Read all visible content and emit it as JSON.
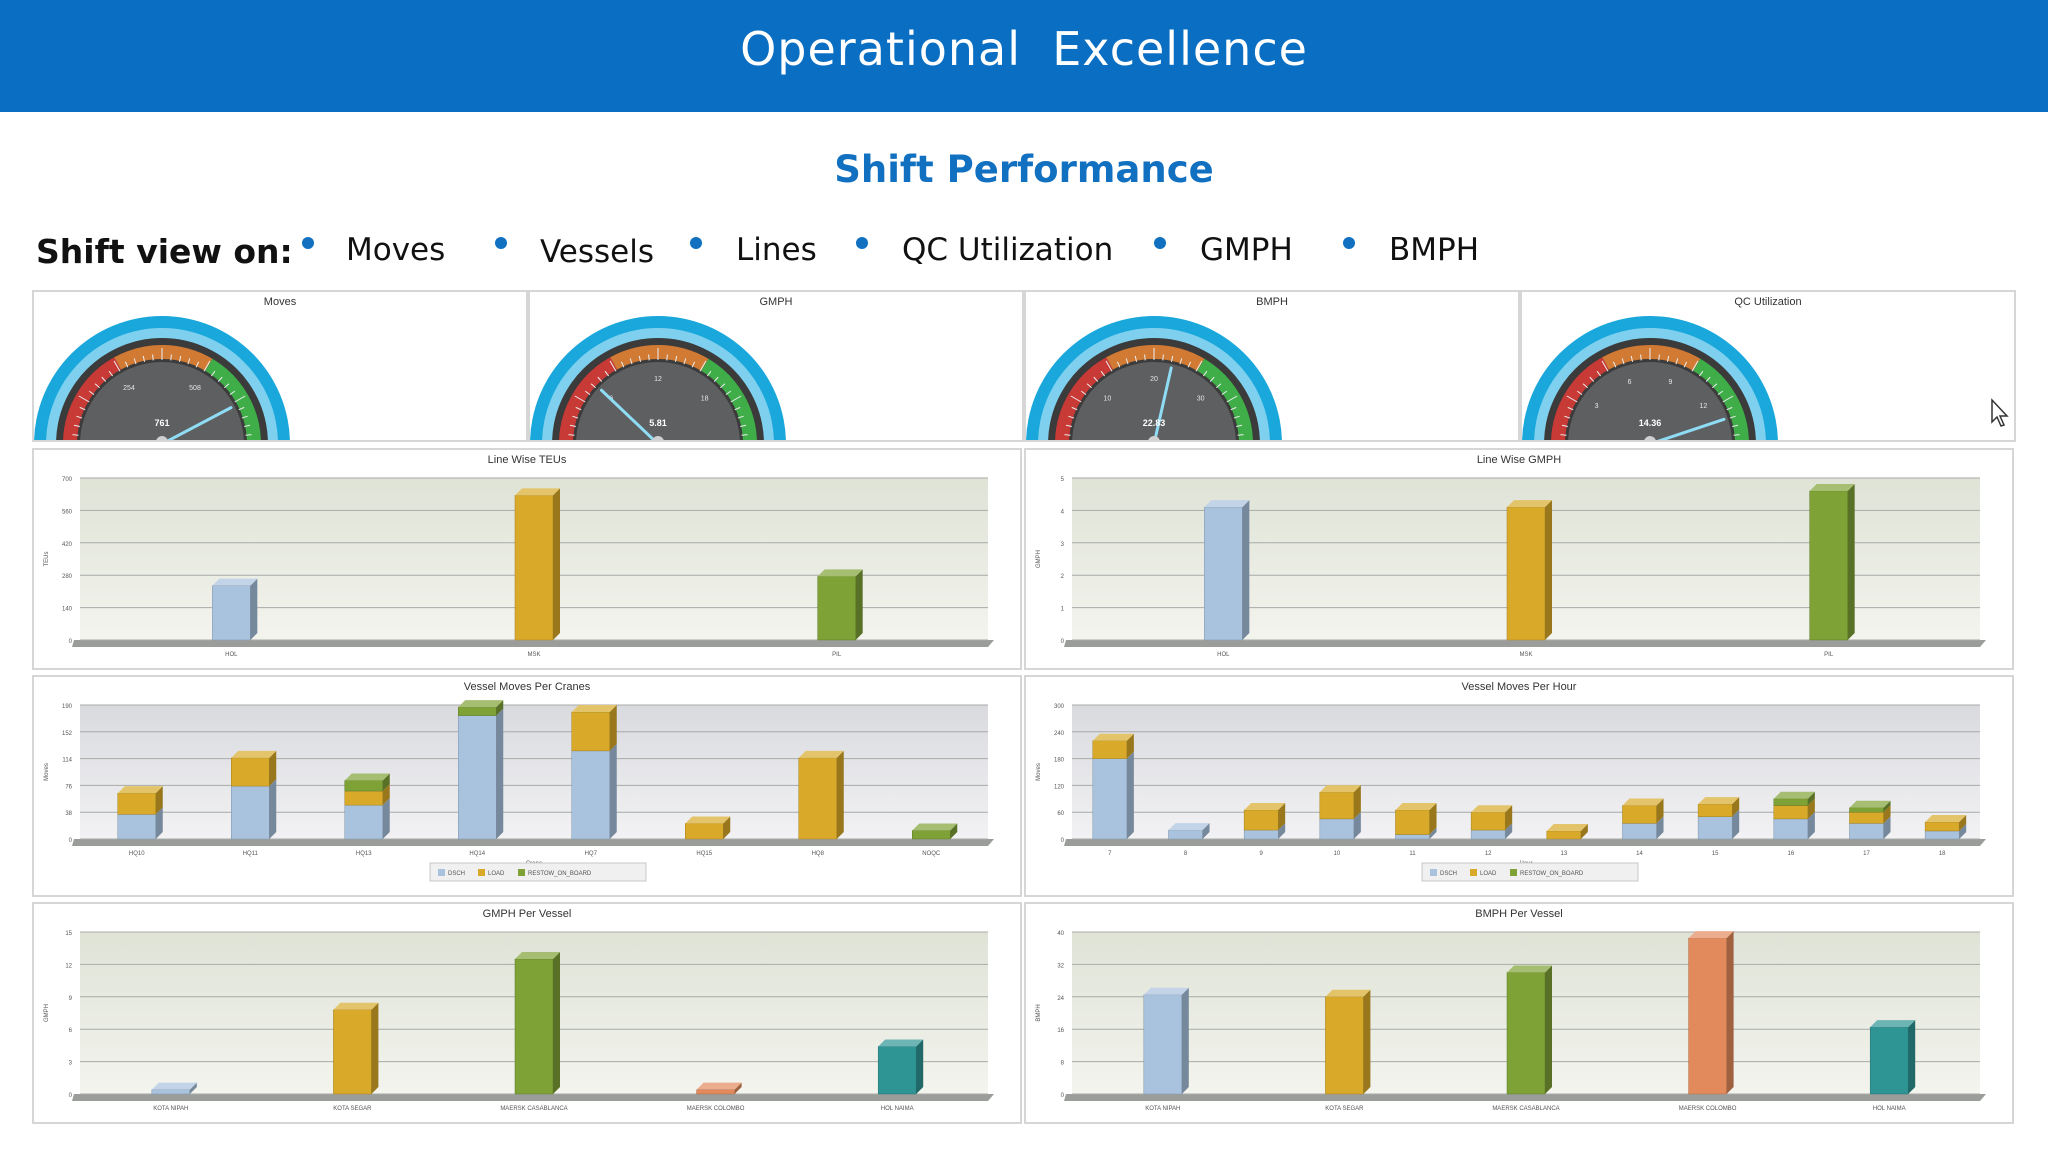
{
  "banner": {
    "title": "Operational  Excellence"
  },
  "subtitle": "Shift Performance",
  "shift_view": {
    "label": "Shift view on:",
    "options": [
      "Moves",
      "Vessels",
      "Lines",
      "QC Utilization",
      "GMPH",
      "BMPH"
    ]
  },
  "colors": {
    "banner": "#0a6fc2",
    "accent": "#1170c0",
    "dsch": "#a9c2de",
    "load": "#d9aa2a",
    "restow": "#7fa236",
    "orange": "#e38a5c",
    "teal": "#2f9494"
  },
  "gauges": [
    {
      "title": "Moves",
      "value": 761,
      "display": "761",
      "max": 900,
      "ticks": [
        "254",
        "508"
      ]
    },
    {
      "title": "GMPH",
      "value": 5.81,
      "display": "5.81",
      "max": 24,
      "ticks": [
        "6",
        "12",
        "18"
      ]
    },
    {
      "title": "BMPH",
      "value": 22.83,
      "display": "22.83",
      "max": 40,
      "ticks": [
        "10",
        "20",
        "30"
      ]
    },
    {
      "title": "QC Utilization",
      "value": 14.36,
      "display": "14.36",
      "max": 16,
      "ticks": [
        "3",
        "6",
        "9",
        "12"
      ]
    }
  ],
  "chart_data": [
    {
      "type": "bar",
      "title": "Line Wise TEUs",
      "ylabel": "TEUs",
      "xlabel": "",
      "ylim": [
        0,
        700
      ],
      "yticks": [
        0,
        140,
        280,
        420,
        560,
        700
      ],
      "categories": [
        "HOL",
        "MSK",
        "PIL"
      ],
      "values": [
        235,
        625,
        275
      ]
    },
    {
      "type": "bar",
      "title": "Line Wise GMPH",
      "ylabel": "GMPH",
      "xlabel": "",
      "ylim": [
        0,
        5
      ],
      "yticks": [
        0,
        1,
        2,
        3,
        4,
        5
      ],
      "categories": [
        "HOL",
        "MSK",
        "PIL"
      ],
      "values": [
        4.1,
        4.1,
        4.6
      ]
    },
    {
      "type": "bar",
      "stacked": true,
      "title": "Vessel Moves Per Cranes",
      "ylabel": "Moves",
      "xlabel": "Crane",
      "ylim": [
        0,
        190
      ],
      "yticks": [
        0,
        38,
        76,
        114,
        152,
        190
      ],
      "categories": [
        "HQ10",
        "HQ11",
        "HQ13",
        "HQ14",
        "HQ7",
        "HQ15",
        "HQ8",
        "NOQC"
      ],
      "series": [
        {
          "name": "DSCH",
          "values": [
            35,
            75,
            48,
            175,
            125,
            0,
            0,
            0
          ]
        },
        {
          "name": "LOAD",
          "values": [
            30,
            40,
            20,
            0,
            55,
            22,
            115,
            0
          ]
        },
        {
          "name": "RESTOW_ON_BOARD",
          "values": [
            0,
            0,
            15,
            12,
            0,
            0,
            0,
            12
          ]
        }
      ],
      "legend": "bottom"
    },
    {
      "type": "bar",
      "stacked": true,
      "title": "Vessel Moves Per Hour",
      "ylabel": "Moves",
      "xlabel": "Hour",
      "ylim": [
        0,
        300
      ],
      "yticks": [
        0,
        60,
        120,
        180,
        240,
        300
      ],
      "categories": [
        "7",
        "8",
        "9",
        "10",
        "11",
        "12",
        "13",
        "14",
        "15",
        "16",
        "17",
        "18"
      ],
      "series": [
        {
          "name": "DSCH",
          "values": [
            180,
            20,
            20,
            45,
            10,
            20,
            0,
            35,
            50,
            45,
            35,
            18
          ]
        },
        {
          "name": "LOAD",
          "values": [
            40,
            0,
            45,
            60,
            55,
            40,
            18,
            40,
            28,
            30,
            25,
            20
          ]
        },
        {
          "name": "RESTOW_ON_BOARD",
          "values": [
            0,
            0,
            0,
            0,
            0,
            0,
            0,
            0,
            0,
            15,
            10,
            0
          ]
        }
      ],
      "legend": "bottom"
    },
    {
      "type": "bar",
      "title": "GMPH Per Vessel",
      "ylabel": "GMPH",
      "xlabel": "",
      "ylim": [
        0,
        15
      ],
      "yticks": [
        0,
        3,
        6,
        9,
        12,
        15
      ],
      "categories": [
        "KOTA NIPAH",
        "KOTA SEGAR",
        "MAERSK CASABLANCA",
        "MAERSK COLOMBO",
        "HOL NAIMA"
      ],
      "values": [
        0.4,
        7.8,
        12.5,
        0.4,
        4.4
      ]
    },
    {
      "type": "bar",
      "title": "BMPH Per Vessel",
      "ylabel": "BMPH",
      "xlabel": "",
      "ylim": [
        0,
        40
      ],
      "yticks": [
        0,
        8,
        16,
        24,
        32,
        40
      ],
      "categories": [
        "KOTA NIPAH",
        "KOTA SEGAR",
        "MAERSK CASABLANCA",
        "MAERSK COLOMBO",
        "HOL NAIMA"
      ],
      "values": [
        24.5,
        24,
        30,
        38.5,
        16.5
      ]
    }
  ]
}
